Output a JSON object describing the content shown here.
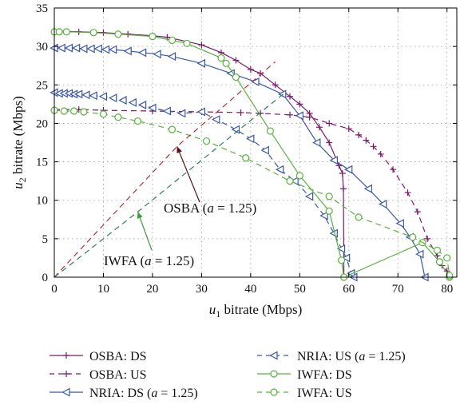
{
  "chart_data": {
    "type": "line",
    "xlabel": "u1 bitrate (Mbps)",
    "ylabel": "u2 bitrate (Mbps)",
    "xlim": [
      0,
      82
    ],
    "ylim": [
      0,
      35
    ],
    "xticks": [
      0,
      10,
      20,
      30,
      40,
      50,
      60,
      70,
      80
    ],
    "yticks": [
      0,
      5,
      10,
      15,
      20,
      25,
      30,
      35
    ],
    "grid": true,
    "legend_position": "below",
    "series": [
      {
        "name": "OSBA: DS",
        "color": "#7a1a6e",
        "dash": "solid",
        "marker": "plus",
        "x": [
          0,
          5,
          10,
          15,
          20,
          23,
          30,
          34,
          37,
          40,
          42,
          45,
          48,
          50,
          52,
          54,
          56,
          58,
          58.7,
          58.9,
          59
        ],
        "y": [
          32,
          31.9,
          31.8,
          31.6,
          31.4,
          31.2,
          30.2,
          29.2,
          28.2,
          27,
          26.5,
          25,
          23.5,
          22.5,
          21.3,
          19.5,
          17.5,
          14.5,
          13.5,
          11.5,
          0
        ]
      },
      {
        "name": "OSBA: US",
        "color": "#7a1a6e",
        "dash": "dash",
        "marker": "plus",
        "x": [
          0,
          5,
          10,
          20,
          30,
          38,
          42,
          48,
          52,
          56,
          60,
          62,
          63.5,
          65,
          66.5,
          69,
          72,
          74,
          76,
          78,
          79,
          80,
          80.5
        ],
        "y": [
          21.8,
          21.8,
          21.7,
          21.6,
          21.5,
          21.4,
          21.3,
          21.1,
          20.8,
          20,
          19.3,
          18.5,
          17.8,
          17,
          16,
          14,
          11,
          8.5,
          5,
          2.8,
          1.5,
          0.8,
          0
        ]
      },
      {
        "name": "NRIA: DS (a = 1.25)",
        "color": "#3a58a8",
        "dash": "solid",
        "marker": "triangle-left",
        "x": [
          0,
          1.5,
          3,
          4.5,
          6,
          7.5,
          9,
          10.5,
          12,
          15,
          18,
          21,
          24,
          30,
          36,
          41,
          46.5,
          50,
          53.5,
          57,
          60,
          64,
          67,
          70.5,
          72.5,
          74.5,
          75.5
        ],
        "y": [
          29.8,
          29.8,
          29.8,
          29.8,
          29.7,
          29.7,
          29.7,
          29.6,
          29.6,
          29.4,
          29.2,
          29,
          28.7,
          27.8,
          26.5,
          25.4,
          23.8,
          21,
          17.5,
          15.2,
          14,
          11.5,
          9.5,
          7,
          5.2,
          3,
          0
        ]
      },
      {
        "name": "NRIA: US (a = 1.25)",
        "color": "#3a58a8",
        "dash": "dash",
        "marker": "triangle-left",
        "x": [
          0,
          1,
          2,
          3,
          4,
          5,
          6.5,
          8,
          10,
          12,
          14,
          16,
          18,
          20,
          23,
          26,
          30,
          33,
          37,
          40,
          43,
          46,
          49,
          52,
          55,
          57,
          58.5,
          59.5,
          60.5,
          61
        ],
        "y": [
          24,
          23.9,
          23.9,
          23.9,
          23.8,
          23.8,
          23.7,
          23.6,
          23.5,
          23.3,
          23,
          22.7,
          22.4,
          22,
          21.6,
          21.3,
          21.5,
          20.5,
          19.2,
          18,
          16.5,
          14,
          12.5,
          10.5,
          8,
          5.7,
          3.7,
          2.5,
          0.5,
          0
        ]
      },
      {
        "name": "IWFA: DS",
        "color": "#58b13e",
        "dash": "solid",
        "marker": "circle",
        "x": [
          0,
          1,
          2.5,
          8,
          13,
          20,
          24,
          27,
          34,
          35,
          37,
          44,
          50,
          56,
          58.5,
          59,
          75,
          78.5,
          80.5
        ],
        "y": [
          31.9,
          31.9,
          31.9,
          31.8,
          31.6,
          31.3,
          30.8,
          30.4,
          28.5,
          27.8,
          26,
          19,
          13.2,
          8.6,
          2.2,
          0,
          4.5,
          2,
          0
        ]
      },
      {
        "name": "IWFA: US",
        "color": "#58b13e",
        "dash": "dash",
        "marker": "circle",
        "x": [
          0,
          2,
          4,
          6,
          10,
          13,
          17,
          24,
          31,
          39,
          48,
          56,
          62,
          73,
          78,
          80,
          80.5
        ],
        "y": [
          21.7,
          21.6,
          21.6,
          21.5,
          21.2,
          20.8,
          20.3,
          19.2,
          17.7,
          15.5,
          12.5,
          10.5,
          7.8,
          5.2,
          3.5,
          2.5,
          0.2
        ]
      },
      {
        "name": "",
        "color": "#b0303a",
        "dash": "dash",
        "marker": "none",
        "legend": false,
        "x": [
          0,
          25,
          45
        ],
        "y": [
          0,
          17,
          28
        ]
      },
      {
        "name": "",
        "color": "#2e7d5b",
        "dash": "dash",
        "marker": "none",
        "legend": false,
        "x": [
          0,
          17,
          47
        ],
        "y": [
          0,
          8.5,
          24
        ]
      }
    ],
    "annotations": [
      {
        "text": "OSBA (a = 1.25)",
        "point_x": 25,
        "point_y": 17,
        "arrow_color": "#5a1014"
      },
      {
        "text": "IWFA (a = 1.25)",
        "point_x": 17,
        "point_y": 8.5,
        "arrow_color": "#3a9a3a"
      }
    ]
  }
}
